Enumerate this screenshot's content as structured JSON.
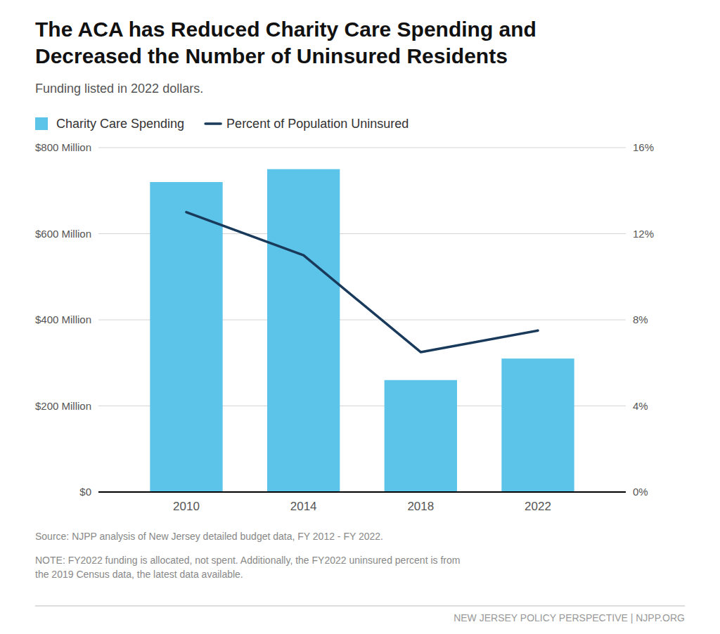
{
  "chart_data": {
    "type": "bar",
    "title": "The ACA has Reduced Charity Care Spending and\nDecreased the Number of Uninsured Residents",
    "subtitle": "Funding listed in 2022 dollars.",
    "annotations": [
      "Source: NJPP analysis of New Jersey detailed budget data, FY 2012 - FY 2022.",
      "NOTE: FY2022 funding is allocated, not spent. Additionally, the FY2022 uninsured percent is from\nthe 2019 Census data, the latest data available.",
      "NEW JERSEY POLICY PERSPECTIVE | NJPP.ORG"
    ],
    "x": [
      2010,
      2014,
      2018,
      2022
    ],
    "xlim": [
      2007,
      2025
    ],
    "xticks": [
      2010,
      2014,
      2018,
      2022
    ],
    "series": [
      {
        "name": "Charity Care Spending",
        "type": "bar",
        "color": "#5bc4e8",
        "values": [
          720,
          750,
          260,
          310
        ]
      },
      {
        "name": "Percent of Population Uninsured",
        "type": "line",
        "color": "#1a3a5c",
        "axis": "y2",
        "values": [
          13.0,
          11.0,
          6.5,
          7.5
        ]
      }
    ],
    "ylim": [
      0,
      800
    ],
    "yticks": [
      {
        "value": 0,
        "label": "$0"
      },
      {
        "value": 200,
        "label": "$200 Million"
      },
      {
        "value": 400,
        "label": "$400 Million"
      },
      {
        "value": 600,
        "label": "$600 Million"
      },
      {
        "value": 800,
        "label": "$800 Million"
      }
    ],
    "y2lim": [
      0,
      16
    ],
    "y2ticks": [
      {
        "value": 0,
        "label": "0%"
      },
      {
        "value": 4,
        "label": "4%"
      },
      {
        "value": 8,
        "label": "8%"
      },
      {
        "value": 12,
        "label": "12%"
      },
      {
        "value": 16,
        "label": "16%"
      }
    ],
    "grid": true,
    "legend": "top"
  }
}
